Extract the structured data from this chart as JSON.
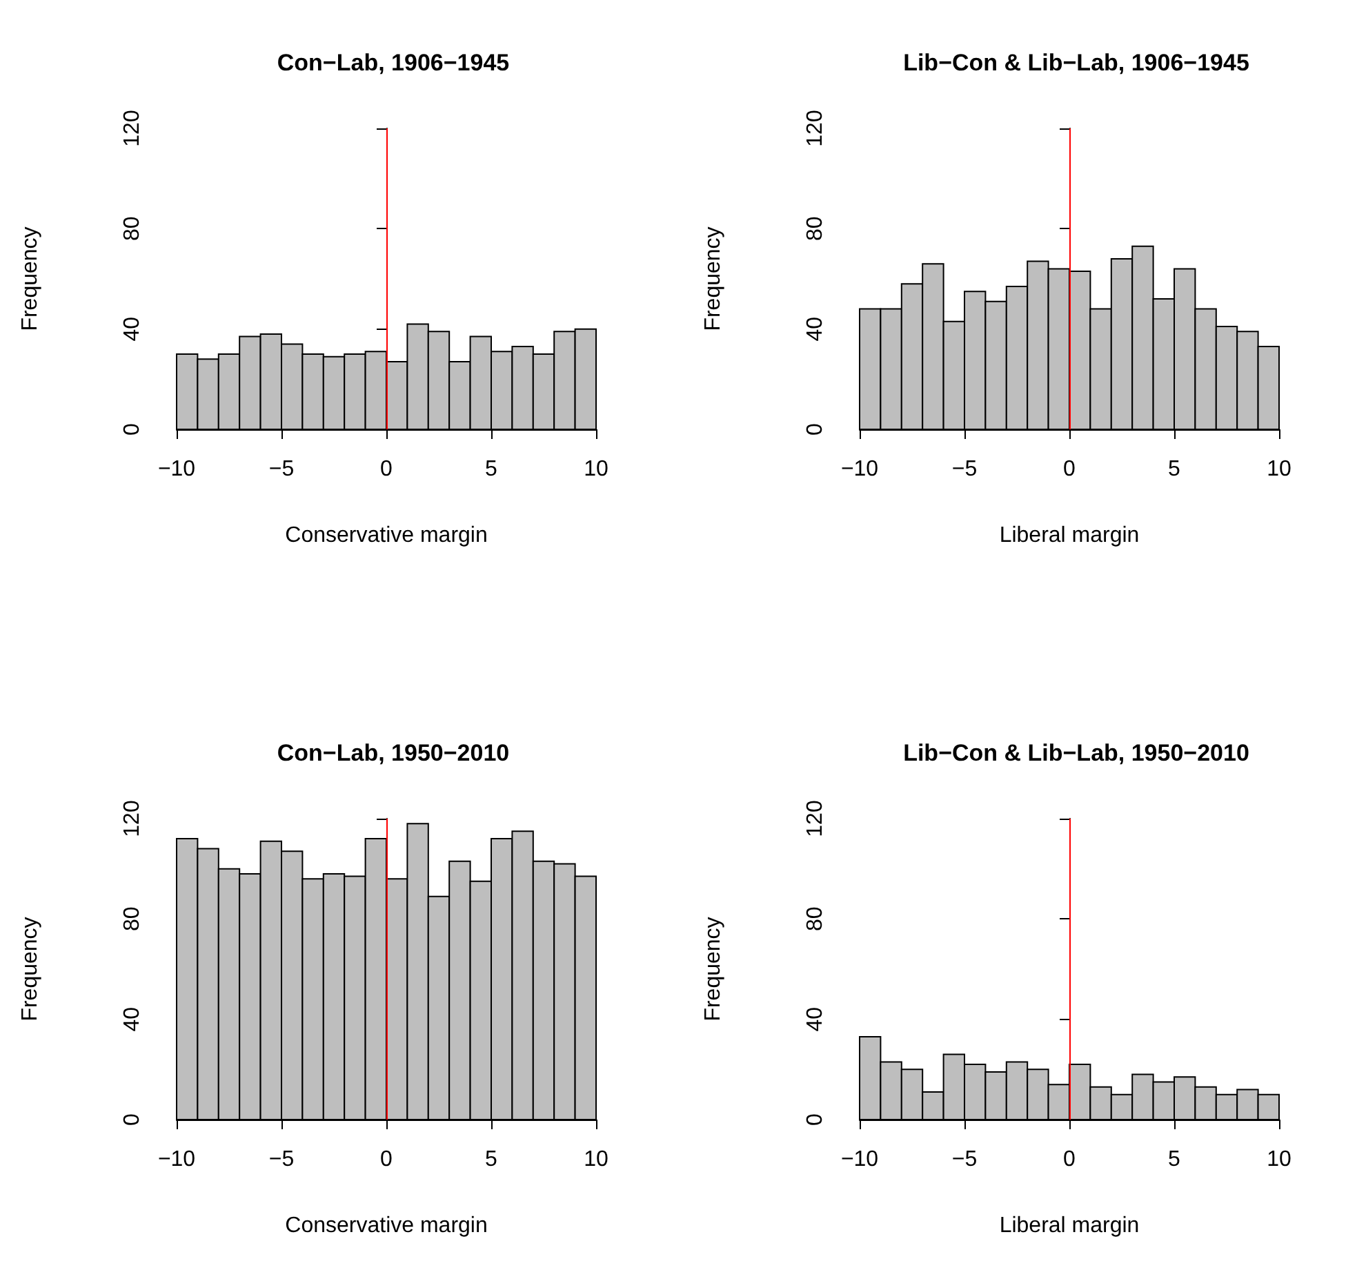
{
  "chart_data": [
    {
      "type": "histogram",
      "title": "Con−Lab, 1906−1945",
      "xlabel": "Conservative margin",
      "ylabel": "Frequency",
      "color": "#bebebe",
      "grid": false,
      "bins": [
        -10,
        -9,
        -8,
        -7,
        -6,
        -5,
        -4,
        -3,
        -2,
        -1,
        0,
        1,
        2,
        3,
        4,
        5,
        6,
        7,
        8,
        9,
        10
      ],
      "values": [
        30,
        28,
        30,
        37,
        38,
        34,
        30,
        29,
        30,
        31,
        27,
        42,
        39,
        27,
        37,
        31,
        33,
        30,
        39,
        40
      ],
      "xlim": [
        -10,
        10
      ],
      "xticks": [
        -10,
        -5,
        0,
        5,
        10
      ],
      "ylim": [
        0,
        120
      ],
      "yticks": [
        0,
        40,
        80,
        120
      ],
      "ref_lines": [
        {
          "axis": "x",
          "value": 0,
          "color": "#ff0000"
        }
      ]
    },
    {
      "type": "histogram",
      "title": "Lib−Con & Lib−Lab, 1906−1945",
      "xlabel": "Liberal margin",
      "ylabel": "Frequency",
      "color": "#bebebe",
      "grid": false,
      "bins": [
        -10,
        -9,
        -8,
        -7,
        -6,
        -5,
        -4,
        -3,
        -2,
        -1,
        0,
        1,
        2,
        3,
        4,
        5,
        6,
        7,
        8,
        9,
        10
      ],
      "values": [
        48,
        48,
        58,
        66,
        43,
        55,
        51,
        57,
        67,
        64,
        63,
        48,
        68,
        73,
        52,
        64,
        48,
        41,
        39,
        33
      ],
      "xlim": [
        -10,
        10
      ],
      "xticks": [
        -10,
        -5,
        0,
        5,
        10
      ],
      "ylim": [
        0,
        120
      ],
      "yticks": [
        0,
        40,
        80,
        120
      ],
      "ref_lines": [
        {
          "axis": "x",
          "value": 0,
          "color": "#ff0000"
        }
      ]
    },
    {
      "type": "histogram",
      "title": "Con−Lab, 1950−2010",
      "xlabel": "Conservative margin",
      "ylabel": "Frequency",
      "color": "#bebebe",
      "grid": false,
      "bins": [
        -10,
        -9,
        -8,
        -7,
        -6,
        -5,
        -4,
        -3,
        -2,
        -1,
        0,
        1,
        2,
        3,
        4,
        5,
        6,
        7,
        8,
        9,
        10
      ],
      "values": [
        112,
        108,
        100,
        98,
        111,
        107,
        96,
        98,
        97,
        112,
        96,
        118,
        89,
        103,
        95,
        112,
        115,
        103,
        102,
        97
      ],
      "xlim": [
        -10,
        10
      ],
      "xticks": [
        -10,
        -5,
        0,
        5,
        10
      ],
      "ylim": [
        0,
        120
      ],
      "yticks": [
        0,
        40,
        80,
        120
      ],
      "ref_lines": [
        {
          "axis": "x",
          "value": 0,
          "color": "#ff0000"
        }
      ]
    },
    {
      "type": "histogram",
      "title": "Lib−Con & Lib−Lab, 1950−2010",
      "xlabel": "Liberal margin",
      "ylabel": "Frequency",
      "color": "#bebebe",
      "grid": false,
      "bins": [
        -10,
        -9,
        -8,
        -7,
        -6,
        -5,
        -4,
        -3,
        -2,
        -1,
        0,
        1,
        2,
        3,
        4,
        5,
        6,
        7,
        8,
        9,
        10
      ],
      "values": [
        33,
        23,
        20,
        11,
        26,
        22,
        19,
        23,
        20,
        14,
        22,
        13,
        10,
        18,
        15,
        17,
        13,
        10,
        12,
        10
      ],
      "xlim": [
        -10,
        10
      ],
      "xticks": [
        -10,
        -5,
        0,
        5,
        10
      ],
      "ylim": [
        0,
        120
      ],
      "yticks": [
        0,
        40,
        80,
        120
      ],
      "ref_lines": [
        {
          "axis": "x",
          "value": 0,
          "color": "#ff0000"
        }
      ]
    }
  ]
}
